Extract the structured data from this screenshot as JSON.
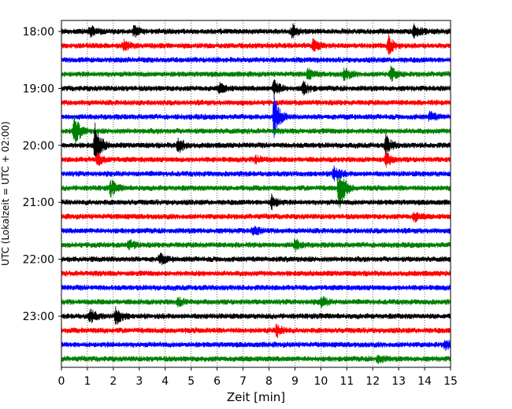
{
  "chart_data": {
    "type": "line",
    "title": "",
    "xlabel": "Zeit  [min]",
    "ylabel": "UTC (Lokalzeit = UTC + 02:00)",
    "xlim": [
      0,
      15
    ],
    "x_ticks": [
      "0",
      "1",
      "2",
      "3",
      "4",
      "5",
      "6",
      "7",
      "8",
      "9",
      "10",
      "11",
      "12",
      "13",
      "14",
      "15"
    ],
    "y_ticks": [
      "18:00",
      "19:00",
      "20:00",
      "21:00",
      "22:00",
      "23:00"
    ],
    "grid": "vertical dotted at each minute",
    "trace_start_hour": 18,
    "trace_interval_min": 15,
    "trace_colors": [
      "#000000",
      "#ff0000",
      "#0000ff",
      "#008000"
    ],
    "traces": [
      {
        "start": "18:00",
        "events": [
          {
            "t": 1.1,
            "amp": 7
          },
          {
            "t": 2.8,
            "amp": 7
          },
          {
            "t": 8.9,
            "amp": 8
          },
          {
            "t": 13.6,
            "amp": 11
          }
        ]
      },
      {
        "start": "18:15",
        "events": [
          {
            "t": 2.4,
            "amp": 6
          },
          {
            "t": 9.7,
            "amp": 8
          },
          {
            "t": 12.6,
            "amp": 12
          }
        ]
      },
      {
        "start": "18:30",
        "events": []
      },
      {
        "start": "18:45",
        "events": [
          {
            "t": 9.5,
            "amp": 6
          },
          {
            "t": 10.9,
            "amp": 8
          },
          {
            "t": 12.7,
            "amp": 9
          }
        ]
      },
      {
        "start": "19:00",
        "events": [
          {
            "t": 6.1,
            "amp": 6
          },
          {
            "t": 8.2,
            "amp": 12
          },
          {
            "t": 9.3,
            "amp": 9
          }
        ]
      },
      {
        "start": "19:15",
        "events": []
      },
      {
        "start": "19:30",
        "events": [
          {
            "t": 8.2,
            "amp": 26
          },
          {
            "t": 14.2,
            "amp": 6
          }
        ]
      },
      {
        "start": "19:45",
        "events": [
          {
            "t": 0.5,
            "amp": 20
          }
        ]
      },
      {
        "start": "20:00",
        "events": [
          {
            "t": 1.3,
            "amp": 30
          },
          {
            "t": 4.5,
            "amp": 10
          },
          {
            "t": 12.5,
            "amp": 12
          }
        ]
      },
      {
        "start": "20:15",
        "events": [
          {
            "t": 1.4,
            "amp": 8
          },
          {
            "t": 7.5,
            "amp": 5
          },
          {
            "t": 12.5,
            "amp": 9
          }
        ]
      },
      {
        "start": "20:30",
        "events": [
          {
            "t": 10.5,
            "amp": 12
          }
        ]
      },
      {
        "start": "20:45",
        "events": [
          {
            "t": 1.9,
            "amp": 10
          },
          {
            "t": 10.7,
            "amp": 30
          }
        ]
      },
      {
        "start": "21:00",
        "events": [
          {
            "t": 8.1,
            "amp": 9
          }
        ]
      },
      {
        "start": "21:15",
        "events": [
          {
            "t": 13.6,
            "amp": 6
          }
        ]
      },
      {
        "start": "21:30",
        "events": [
          {
            "t": 7.4,
            "amp": 6
          }
        ]
      },
      {
        "start": "21:45",
        "events": [
          {
            "t": 2.6,
            "amp": 6
          },
          {
            "t": 9.0,
            "amp": 7
          }
        ]
      },
      {
        "start": "22:00",
        "events": [
          {
            "t": 3.8,
            "amp": 7
          }
        ]
      },
      {
        "start": "22:15",
        "events": []
      },
      {
        "start": "22:30",
        "events": []
      },
      {
        "start": "22:45",
        "events": [
          {
            "t": 10.0,
            "amp": 7
          },
          {
            "t": 4.5,
            "amp": 5
          }
        ]
      },
      {
        "start": "23:00",
        "events": [
          {
            "t": 1.1,
            "amp": 9
          },
          {
            "t": 2.1,
            "amp": 12
          }
        ]
      },
      {
        "start": "23:15",
        "events": [
          {
            "t": 8.3,
            "amp": 8
          }
        ]
      },
      {
        "start": "23:30",
        "events": [
          {
            "t": 14.8,
            "amp": 6
          }
        ]
      },
      {
        "start": "23:45",
        "events": [
          {
            "t": 12.2,
            "amp": 5
          }
        ]
      }
    ]
  }
}
